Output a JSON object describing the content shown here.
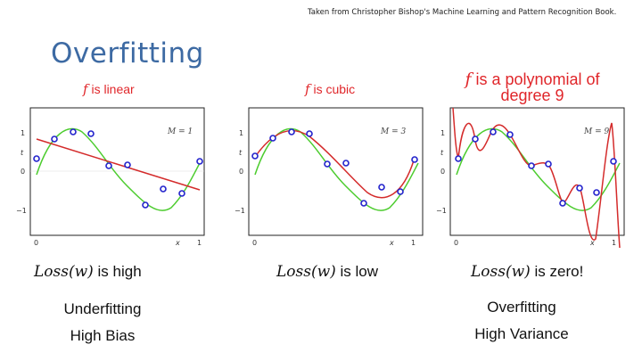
{
  "credit": "Taken from Christopher Bishop's Machine Learning and Pattern Recognition Book.",
  "title": "Overfitting",
  "panels": [
    {
      "caption_f": "f",
      "caption_text": " is linear",
      "m_label": "M = 1",
      "loss_math": "Loss(w)",
      "loss_text": " is high",
      "plot": {
        "x_ticks": [
          "0",
          "1"
        ],
        "y_ticks": [
          "1",
          "0",
          "−1"
        ],
        "xlabel": "x",
        "ylabel": "t"
      }
    },
    {
      "caption_f": "f",
      "caption_text": " is cubic",
      "m_label": "M = 3",
      "loss_math": "Loss(w)",
      "loss_text": " is low",
      "plot": {
        "x_ticks": [
          "0",
          "1"
        ],
        "y_ticks": [
          "1",
          "0",
          "−1"
        ],
        "xlabel": "x",
        "ylabel": "t"
      }
    },
    {
      "caption_f": "f",
      "caption_text": " is a polynomial of",
      "caption_text2": "degree 9",
      "m_label": "M = 9",
      "loss_math": "Loss(w)",
      "loss_text": " is zero!",
      "plot": {
        "x_ticks": [
          "0",
          "1"
        ],
        "y_ticks": [
          "1",
          "0",
          "−1"
        ],
        "xlabel": "x",
        "ylabel": "t"
      }
    }
  ],
  "labels": {
    "left_line1": "Underfitting",
    "left_line2": "High Bias",
    "right_line1": "Overfitting",
    "right_line2": "High Variance"
  },
  "colors": {
    "title": "#3d6aa3",
    "caption": "#e0262a",
    "true_curve": "#4ccc2e",
    "fit_curve": "#d42b2b",
    "points": "#2222cc"
  },
  "chart_data": {
    "type": "scatter",
    "x": [
      0,
      0.111,
      0.222,
      0.333,
      0.444,
      0.556,
      0.667,
      0.778,
      0.889,
      1
    ],
    "y": [
      0.35,
      0.8,
      1.0,
      0.95,
      0.15,
      0.18,
      -0.85,
      -0.4,
      -0.55,
      0.28
    ],
    "xlim": [
      0,
      1
    ],
    "ylim": [
      -1.35,
      1.35
    ]
  }
}
